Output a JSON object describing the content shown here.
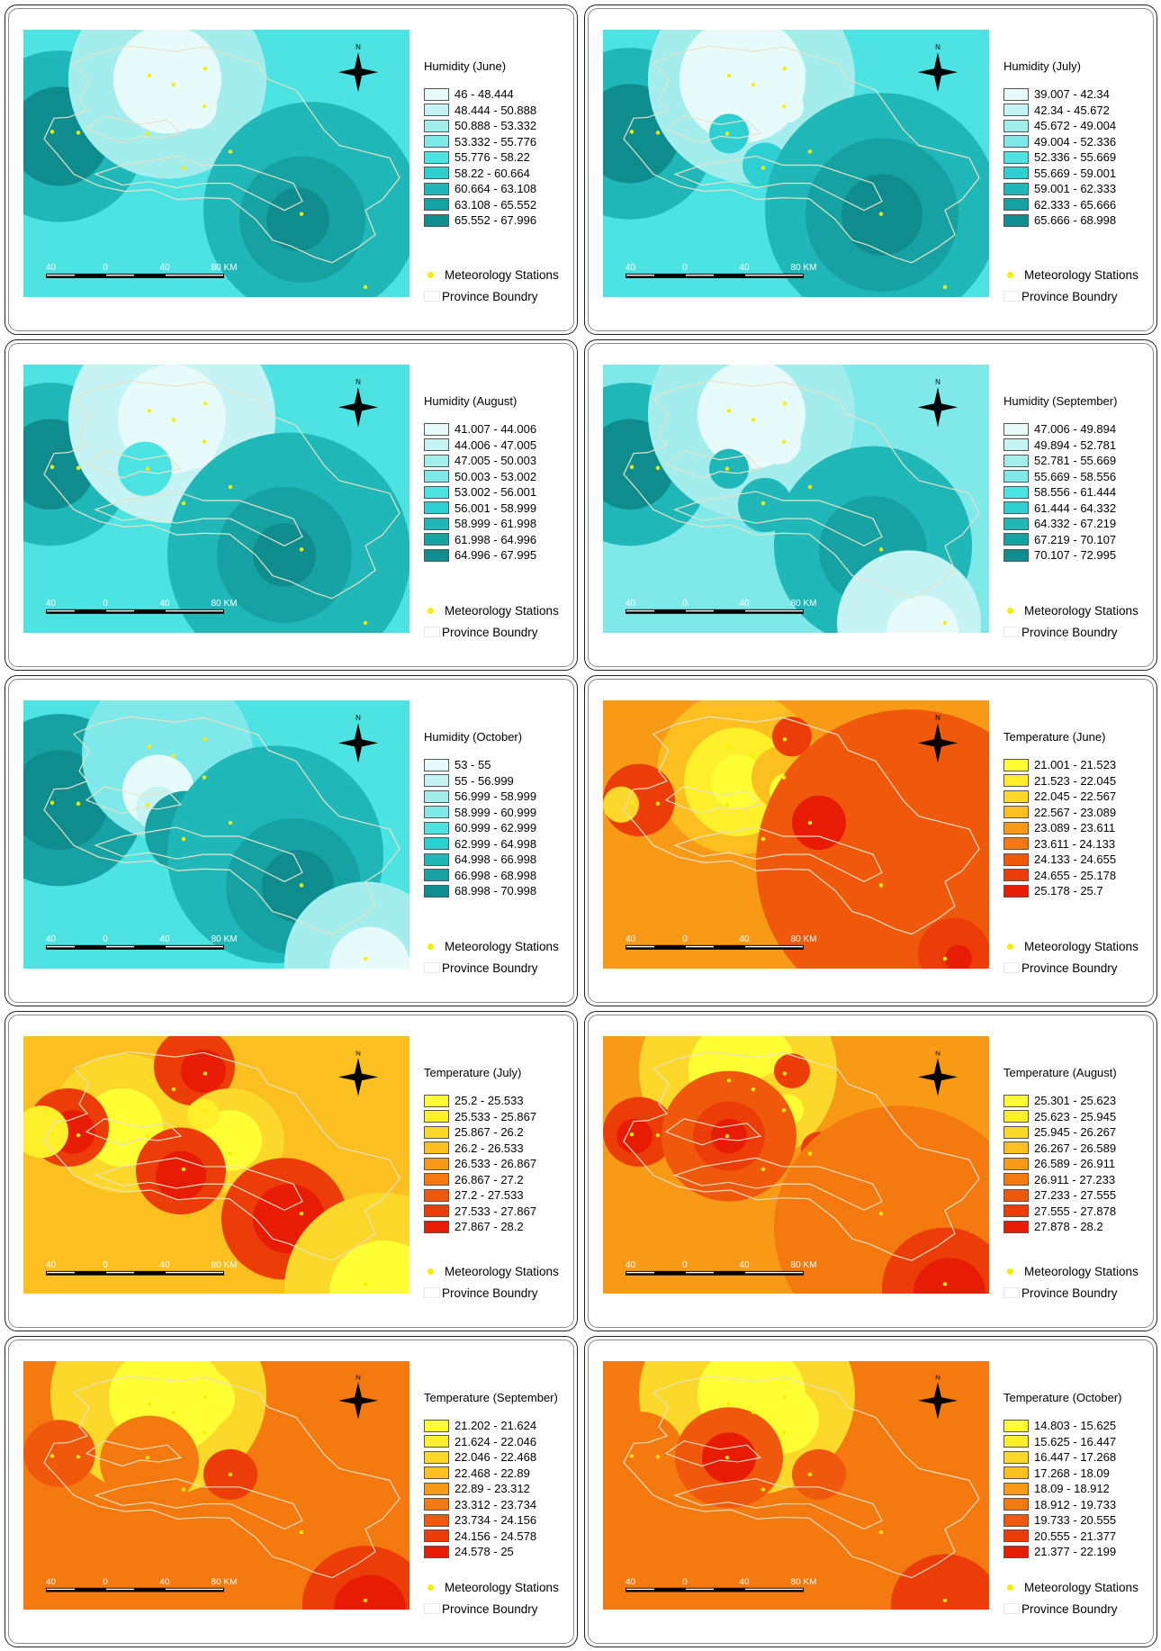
{
  "legend_common": {
    "stations_label": "Meteorology Stations",
    "boundary_label": "Province Boundry",
    "north_label": "N",
    "scale_labels": [
      "40",
      "0",
      "40",
      "80 KM"
    ]
  },
  "colors": {
    "humidity_scale": [
      "#e8fbfb",
      "#c6f4f4",
      "#a3eded",
      "#7fe8e8",
      "#4de3e3",
      "#2ecfd0",
      "#20b7b8",
      "#16a2a3",
      "#0f8c8e"
    ],
    "temperature_scale": [
      "#ffff33",
      "#fdf02a",
      "#fcd82a",
      "#fbbf1f",
      "#f89a16",
      "#f47a10",
      "#f0580c",
      "#ec3c08",
      "#e81c05"
    ],
    "station": "#f4f000",
    "boundary": "#e7e2c7"
  },
  "panels": [
    {
      "title": "Humidity (June)",
      "kind": "humidity",
      "classes": [
        "46 - 48.444",
        "48.444 - 50.888",
        "50.888 - 53.332",
        "53.332 - 55.776",
        "55.776 - 58.22",
        "58.22 - 60.664",
        "60.664 - 63.108",
        "63.108 - 65.552",
        "65.552 - 67.996"
      ]
    },
    {
      "title": "Humidity (July)",
      "kind": "humidity",
      "classes": [
        "39.007 - 42.34",
        "42.34 - 45.672",
        "45.672 - 49.004",
        "49.004 - 52.336",
        "52.336 - 55.669",
        "55.669 - 59.001",
        "59.001 - 62.333",
        "62.333 - 65.666",
        "65.666 - 68.998"
      ]
    },
    {
      "title": "Humidity (August)",
      "kind": "humidity",
      "classes": [
        "41.007 - 44.006",
        "44.006 - 47.005",
        "47.005 - 50.003",
        "50.003 - 53.002",
        "53.002 - 56.001",
        "56.001 - 58.999",
        "58.999 - 61.998",
        "61.998 - 64.996",
        "64.996 - 67.995"
      ]
    },
    {
      "title": "Humidity (September)",
      "kind": "humidity",
      "classes": [
        "47.006 - 49.894",
        "49.894 - 52.781",
        "52.781 - 55.669",
        "55.669 - 58.556",
        "58.556 - 61.444",
        "61.444 - 64.332",
        "64.332 - 67.219",
        "67.219 - 70.107",
        "70.107 - 72.995"
      ]
    },
    {
      "title": "Humidity (October)",
      "kind": "humidity",
      "classes": [
        "53 - 55",
        "55 - 56.999",
        "56.999 - 58.999",
        "58.999 - 60.999",
        "60.999 - 62.999",
        "62.999 - 64.998",
        "64.998 - 66.998",
        "66.998 - 68.998",
        "68.998 - 70.998"
      ]
    },
    {
      "title": "Temperature (June)",
      "kind": "temperature",
      "classes": [
        "21.001 - 21.523",
        "21.523 - 22.045",
        "22.045 - 22.567",
        "22.567 - 23.089",
        "23.089 - 23.611",
        "23.611 - 24.133",
        "24.133 - 24.655",
        "24.655 - 25.178",
        "25.178 - 25.7"
      ]
    },
    {
      "title": "Temperature (July)",
      "kind": "temperature",
      "classes": [
        "25.2 - 25.533",
        "25.533 - 25.867",
        "25.867 - 26.2",
        "26.2 - 26.533",
        "26.533 - 26.867",
        "26.867 - 27.2",
        "27.2 - 27.533",
        "27.533 - 27.867",
        "27.867 - 28.2"
      ]
    },
    {
      "title": "Temperature (August)",
      "kind": "temperature",
      "classes": [
        "25.301 - 25.623",
        "25.623 - 25.945",
        "25.945 - 26.267",
        "26.267 - 26.589",
        "26.589 - 26.911",
        "26.911 - 27.233",
        "27.233 - 27.555",
        "27.555 - 27.878",
        "27.878 - 28.2"
      ]
    },
    {
      "title": "Temperature (September)",
      "kind": "temperature",
      "classes": [
        "21.202 - 21.624",
        "21.624 - 22.046",
        "22.046 - 22.468",
        "22.468 - 22.89",
        "22.89 - 23.312",
        "23.312 - 23.734",
        "23.734 - 24.156",
        "24.156 - 24.578",
        "24.578 - 25"
      ]
    },
    {
      "title": "Temperature (October)",
      "kind": "temperature",
      "classes": [
        "14.803 - 15.625",
        "15.625 - 16.447",
        "16.447 - 17.268",
        "17.268 - 18.09",
        "18.09 - 18.912",
        "18.912 - 19.733",
        "19.733 - 20.555",
        "20.555 - 21.377",
        "21.377 - 22.199"
      ]
    }
  ]
}
